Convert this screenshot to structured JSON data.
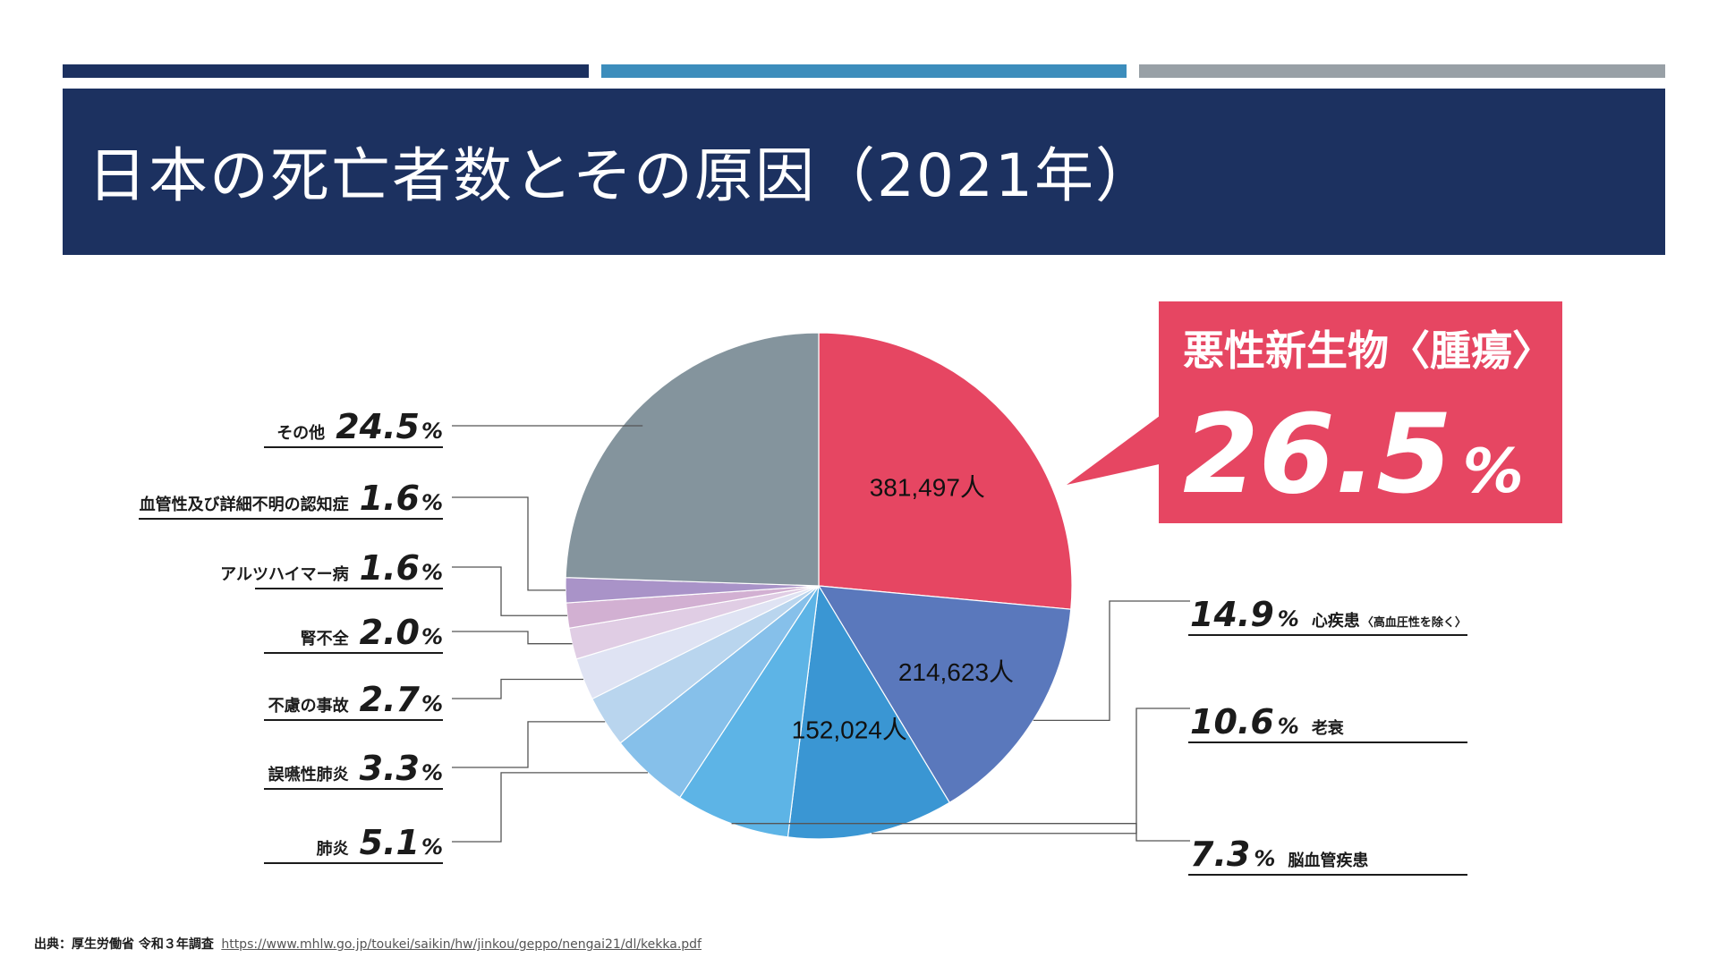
{
  "title": "日本の死亡者数とその原因（2021年）",
  "colors": {
    "navy": "#1c3160",
    "accent_blue": "#3c8dbc",
    "accent_gray": "#98a0a6",
    "highlight": "#e64662"
  },
  "chart_data": {
    "type": "pie",
    "title": "日本の死亡者数とその原因（2021年）",
    "slices": [
      {
        "label": "悪性新生物",
        "sub": "〈腫瘍〉",
        "value": 26.5,
        "count": "381,497人",
        "color": "#e64662"
      },
      {
        "label": "心疾患",
        "sub": "〈高血圧性を除く〉",
        "value": 14.9,
        "count": "214,623人",
        "color": "#5a78bc"
      },
      {
        "label": "老衰",
        "sub": "",
        "value": 10.6,
        "count": "152,024人",
        "color": "#3a96d3"
      },
      {
        "label": "脳血管疾患",
        "sub": "",
        "value": 7.3,
        "count": "",
        "color": "#5db4e6"
      },
      {
        "label": "肺炎",
        "sub": "",
        "value": 5.1,
        "count": "",
        "color": "#86c0ea"
      },
      {
        "label": "誤嚥性肺炎",
        "sub": "",
        "value": 3.3,
        "count": "",
        "color": "#b9d5ee"
      },
      {
        "label": "不慮の事故",
        "sub": "",
        "value": 2.7,
        "count": "",
        "color": "#dfe3f3"
      },
      {
        "label": "腎不全",
        "sub": "",
        "value": 2.0,
        "count": "",
        "color": "#e0cde4"
      },
      {
        "label": "アルツハイマー病",
        "sub": "",
        "value": 1.6,
        "count": "",
        "color": "#d2b0d2"
      },
      {
        "label": "血管性及び詳細不明の認知症",
        "sub": "",
        "value": 1.6,
        "count": "",
        "color": "#a993c8"
      },
      {
        "label": "その他",
        "sub": "",
        "value": 24.5,
        "count": "",
        "color": "#84949d"
      }
    ],
    "percent_labels": [
      "26.5",
      "14.9",
      "10.6",
      "7.3",
      "5.1",
      "3.3",
      "2.7",
      "2.0",
      "1.6",
      "1.6",
      "24.5"
    ],
    "unit": "%"
  },
  "callout": {
    "label": "悪性新生物〈腫瘍〉",
    "value": "26.5",
    "unit": "%"
  },
  "source": {
    "label": "出典：厚生労働省 令和３年調査",
    "url": "https://www.mhlw.go.jp/toukei/saikin/hw/jinkou/geppo/nengai21/dl/kekka.pdf"
  }
}
